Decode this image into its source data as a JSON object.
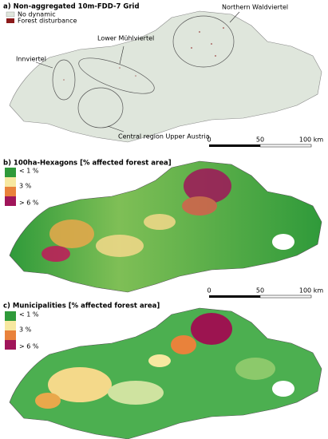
{
  "panels": [
    {
      "title": "a) Non-aggregated 10m-FDD-7 Grid",
      "legend": [
        "No dynamic",
        "Forest disturbance"
      ],
      "annotations": [
        "Northern Waldviertel",
        "Lower Mühlviertel",
        "Innviertel",
        "Central region Upper Austria"
      ],
      "scale": [
        "0",
        "50",
        "100 km"
      ]
    },
    {
      "title": "b) 100ha-Hexagons [% affected forest area]",
      "legend": [
        "< 1 %",
        "3 %",
        "> 6 %"
      ],
      "scale": [
        "0",
        "50",
        "100 km"
      ]
    },
    {
      "title": "c) Municipalities [% affected forest area]",
      "legend": [
        "< 1 %",
        "3 %",
        "> 6 %"
      ]
    }
  ]
}
